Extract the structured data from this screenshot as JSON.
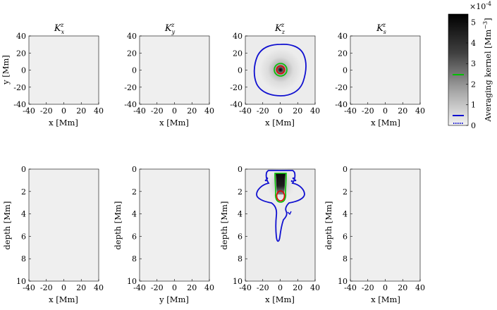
{
  "chart_data": [
    {
      "type": "heatmap",
      "title": "K",
      "title_sub": "x",
      "title_sup": "z",
      "xlabel": "x [Mm]",
      "ylabel": "y [Mm]",
      "xticks": [
        "-40",
        "-20",
        "0",
        "20",
        "40"
      ],
      "yticks": [
        "40",
        "20",
        "0",
        "-20",
        "-40"
      ],
      "xlim": [
        -40,
        40
      ],
      "ylim": [
        -40,
        40
      ],
      "kernel": "none"
    },
    {
      "type": "heatmap",
      "title": "K",
      "title_sub": "y",
      "title_sup": "z",
      "xlabel": "x [Mm]",
      "ylabel": "",
      "xticks": [
        "-40",
        "-20",
        "0",
        "20",
        "40"
      ],
      "yticks": [
        "40",
        "20",
        "0",
        "-20",
        "-40"
      ],
      "xlim": [
        -40,
        40
      ],
      "ylim": [
        -40,
        40
      ],
      "kernel": "none"
    },
    {
      "type": "heatmap",
      "title": "K",
      "title_sub": "z",
      "title_sup": "z",
      "xlabel": "x [Mm]",
      "ylabel": "",
      "xticks": [
        "-40",
        "-20",
        "0",
        "20",
        "40"
      ],
      "yticks": [
        "40",
        "20",
        "0",
        "-20",
        "-40"
      ],
      "xlim": [
        -40,
        40
      ],
      "ylim": [
        -40,
        40
      ],
      "kernel": "horizontal"
    },
    {
      "type": "heatmap",
      "title": "K",
      "title_sub": "s",
      "title_sup": "z",
      "xlabel": "x [Mm]",
      "ylabel": "",
      "xticks": [
        "-40",
        "-20",
        "0",
        "20",
        "40"
      ],
      "yticks": [
        "40",
        "20",
        "0",
        "-20",
        "-40"
      ],
      "xlim": [
        -40,
        40
      ],
      "ylim": [
        -40,
        40
      ],
      "kernel": "none"
    },
    {
      "type": "heatmap",
      "title": "",
      "xlabel": "x [Mm]",
      "ylabel": "depth [Mm]",
      "xticks": [
        "-40",
        "-20",
        "0",
        "20",
        "40"
      ],
      "yticks": [
        "0",
        "2",
        "4",
        "6",
        "8",
        "10"
      ],
      "xlim": [
        -40,
        40
      ],
      "ylim": [
        0,
        10
      ],
      "kernel": "none"
    },
    {
      "type": "heatmap",
      "title": "",
      "xlabel": "y [Mm]",
      "ylabel": "depth [Mm]",
      "xticks": [
        "-40",
        "-20",
        "0",
        "20",
        "40"
      ],
      "yticks": [
        "0",
        "2",
        "4",
        "6",
        "8",
        "10"
      ],
      "xlim": [
        -40,
        40
      ],
      "ylim": [
        0,
        10
      ],
      "kernel": "none"
    },
    {
      "type": "heatmap",
      "title": "",
      "xlabel": "x [Mm]",
      "ylabel": "depth [Mm]",
      "xticks": [
        "-40",
        "-20",
        "0",
        "20",
        "40"
      ],
      "yticks": [
        "0",
        "2",
        "4",
        "6",
        "8",
        "10"
      ],
      "xlim": [
        -40,
        40
      ],
      "ylim": [
        0,
        10
      ],
      "kernel": "vertical"
    },
    {
      "type": "heatmap",
      "title": "",
      "xlabel": "x [Mm]",
      "ylabel": "depth [Mm]",
      "xticks": [
        "-40",
        "-20",
        "0",
        "20",
        "40"
      ],
      "yticks": [
        "0",
        "2",
        "4",
        "6",
        "8",
        "10"
      ],
      "xlim": [
        -40,
        40
      ],
      "ylim": [
        0,
        10
      ],
      "kernel": "none"
    }
  ],
  "colorbar": {
    "label": "Averaging kernel [Mm",
    "label_exp": "−3",
    "label_close": "]",
    "multiplier": "×10",
    "multiplier_exp": "-4",
    "ticks": [
      "5",
      "4",
      "3",
      "2",
      "1",
      "0"
    ],
    "range": [
      0,
      5.4
    ],
    "colors": {
      "top": "#000000",
      "bottom": "#f2f2f2",
      "green": "#00c000",
      "blue": "#1010d0",
      "red": "#e00000"
    }
  }
}
